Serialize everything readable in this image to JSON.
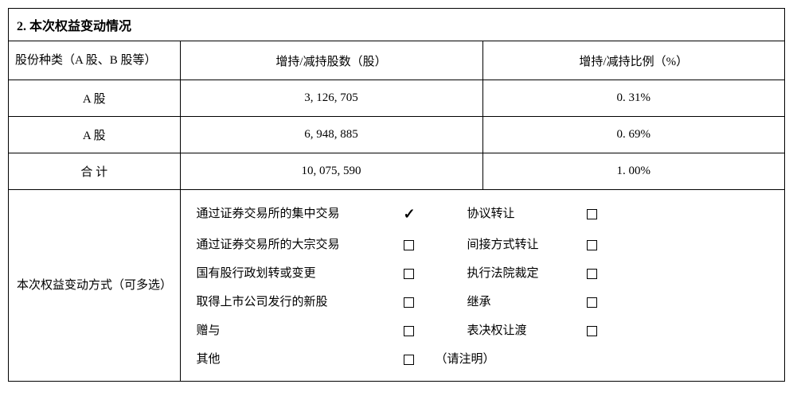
{
  "title": "2. 本次权益变动情况",
  "table": {
    "headers": {
      "col1": "股份种类（A 股、B 股等）",
      "col2": "增持/减持股数（股）",
      "col3": "增持/减持比例（%）"
    },
    "rows": [
      {
        "type": "A 股",
        "shares": "3, 126, 705",
        "ratio": "0. 31%"
      },
      {
        "type": "A 股",
        "shares": "6, 948, 885",
        "ratio": "0. 69%"
      },
      {
        "type": "合    计",
        "shares": "10, 075, 590",
        "ratio": "1. 00%"
      }
    ]
  },
  "method": {
    "label": "本次权益变动方式（可多选）",
    "options_left": [
      {
        "label": "通过证券交易所的集中交易",
        "checked": true
      },
      {
        "label": "通过证券交易所的大宗交易",
        "checked": false
      },
      {
        "label": "国有股行政划转或变更",
        "checked": false
      },
      {
        "label": "取得上市公司发行的新股",
        "checked": false
      },
      {
        "label": "赠与",
        "checked": false
      },
      {
        "label": "其他",
        "checked": false
      }
    ],
    "options_right": [
      {
        "label": "协议转让",
        "checked": false
      },
      {
        "label": "间接方式转让",
        "checked": false
      },
      {
        "label": "执行法院裁定",
        "checked": false
      },
      {
        "label": "继承",
        "checked": false
      },
      {
        "label": "表决权让渡",
        "checked": false
      }
    ],
    "other_note": "（请注明）"
  }
}
